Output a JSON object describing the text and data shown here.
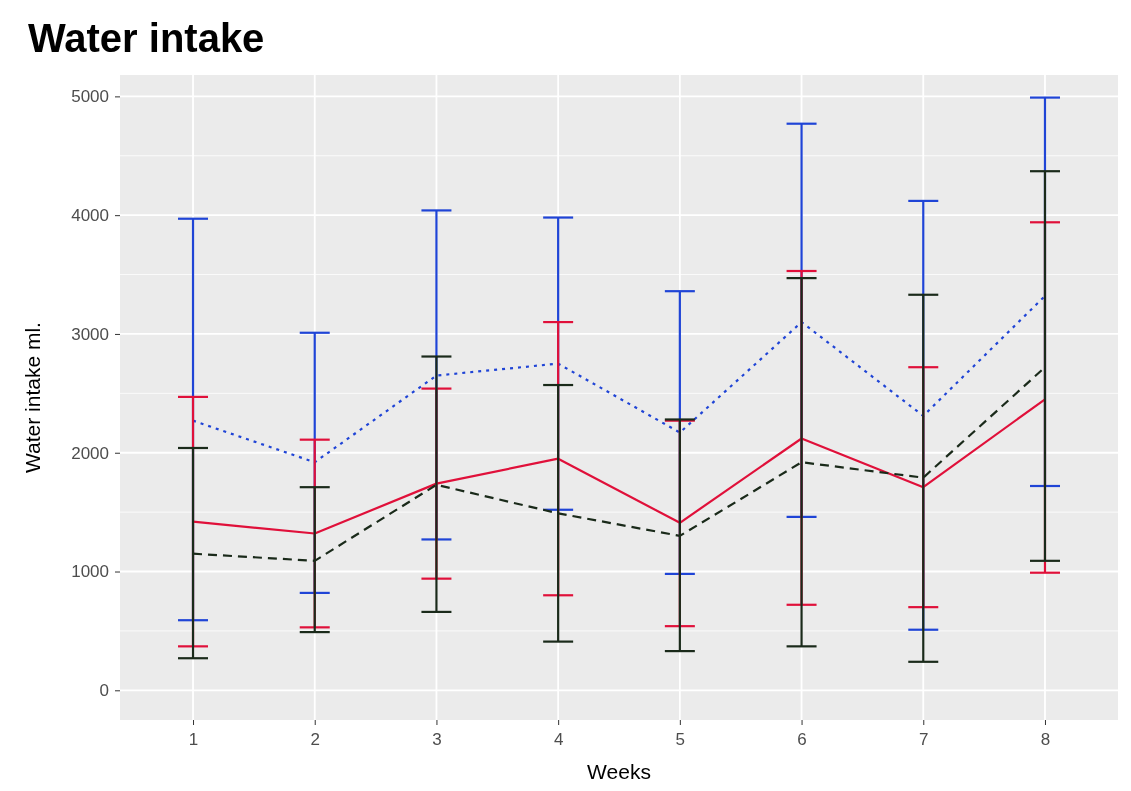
{
  "chart_data": {
    "type": "line",
    "title": "Water intake",
    "xlabel": "Weeks",
    "ylabel": "Water intake ml.",
    "categories": [
      "1",
      "2",
      "3",
      "4",
      "5",
      "6",
      "7",
      "8"
    ],
    "ylim": [
      -250,
      5180
    ],
    "yticks": [
      0,
      1000,
      2000,
      3000,
      4000,
      5000
    ],
    "grid": true,
    "marker": "none",
    "series": [
      {
        "color": "#1f44d6",
        "line_style": "dotted",
        "values": [
          2270,
          1920,
          2650,
          2750,
          2170,
          3100,
          2310,
          3320
        ],
        "errors": [
          [
            590,
            3970
          ],
          [
            820,
            3010
          ],
          [
            1270,
            4040
          ],
          [
            1520,
            3980
          ],
          [
            980,
            3360
          ],
          [
            1460,
            4770
          ],
          [
            510,
            4120
          ],
          [
            1720,
            4990
          ]
        ]
      },
      {
        "color": "#e0103a",
        "line_style": "solid",
        "values": [
          1420,
          1320,
          1740,
          1950,
          1410,
          2120,
          1710,
          2450
        ],
        "errors": [
          [
            370,
            2470
          ],
          [
            530,
            2110
          ],
          [
            940,
            2540
          ],
          [
            800,
            3100
          ],
          [
            540,
            2270
          ],
          [
            720,
            3530
          ],
          [
            700,
            2720
          ],
          [
            990,
            3940
          ]
        ]
      },
      {
        "color": "#1a2a1a",
        "line_style": "dashed",
        "values": [
          1150,
          1090,
          1730,
          1490,
          1300,
          1920,
          1790,
          2720
        ],
        "errors": [
          [
            270,
            2040
          ],
          [
            490,
            1710
          ],
          [
            660,
            2810
          ],
          [
            410,
            2570
          ],
          [
            330,
            2280
          ],
          [
            370,
            3470
          ],
          [
            240,
            3330
          ],
          [
            1090,
            4370
          ]
        ]
      }
    ]
  }
}
